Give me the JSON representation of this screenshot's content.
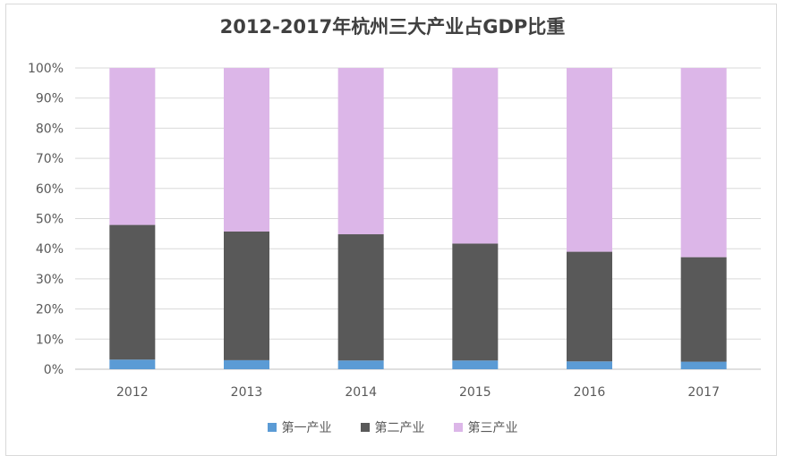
{
  "chart_data": {
    "type": "bar",
    "stacked": true,
    "title": "2012-2017年杭州三大产业占GDP比重",
    "categories": [
      "2012",
      "2013",
      "2014",
      "2015",
      "2016",
      "2017"
    ],
    "series": [
      {
        "name": "第一产业",
        "color": "#5b9bd5",
        "values": [
          3.2,
          3.0,
          2.9,
          2.9,
          2.6,
          2.5
        ]
      },
      {
        "name": "第二产业",
        "color": "#595959",
        "values": [
          44.7,
          42.7,
          41.9,
          38.8,
          36.4,
          34.7
        ]
      },
      {
        "name": "第三产业",
        "color": "#dcb6e8",
        "values": [
          52.1,
          54.3,
          55.2,
          58.3,
          61.0,
          62.8
        ]
      }
    ],
    "yticks": [
      "0%",
      "10%",
      "20%",
      "30%",
      "40%",
      "50%",
      "60%",
      "70%",
      "80%",
      "90%",
      "100%"
    ],
    "ylim": [
      0,
      100
    ],
    "grid": true,
    "legend": "bottom"
  }
}
